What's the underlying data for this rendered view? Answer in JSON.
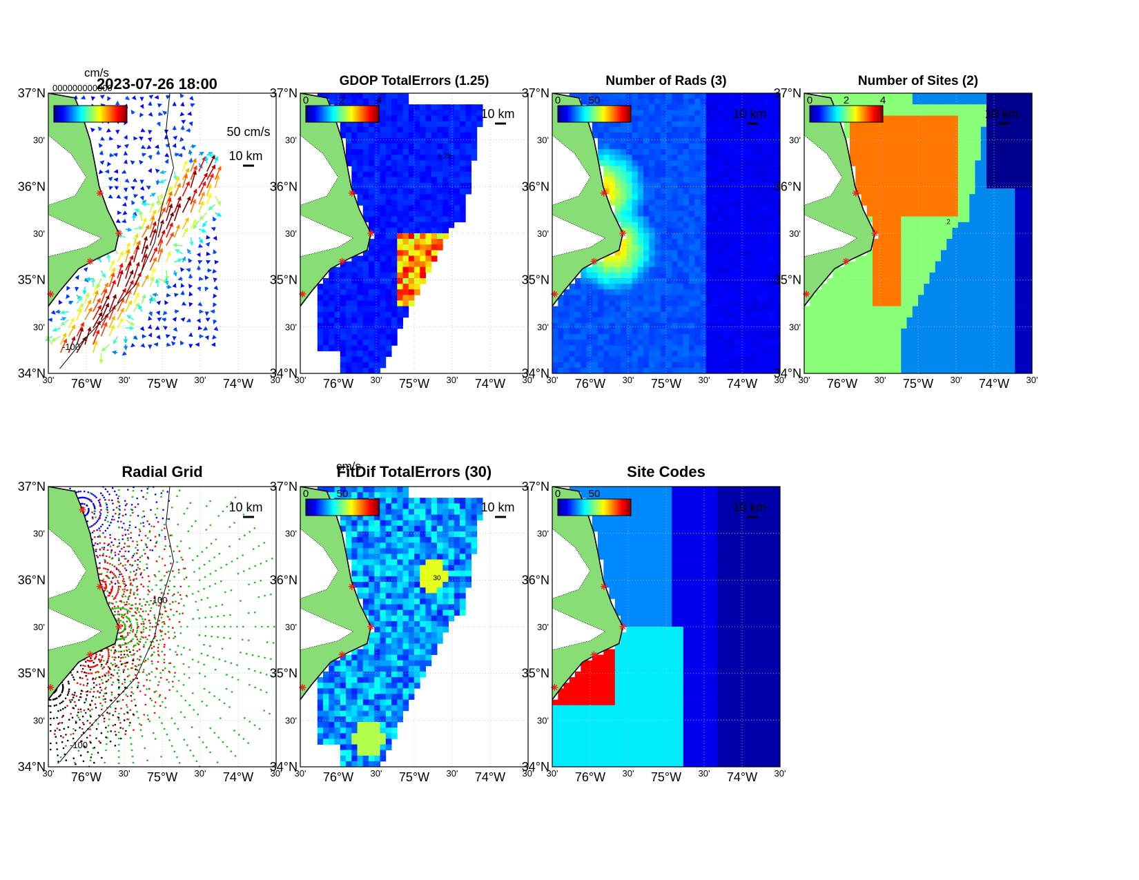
{
  "figure": {
    "timestamp": "2023-07-26 18:00"
  },
  "colors": {
    "land": "#88dd77",
    "coast": "#000000",
    "grid": "#bbbbbb",
    "site_marker": "#ee2222"
  },
  "axes": {
    "lat_major": [
      "37°N",
      "36°N",
      "35°N",
      "34°N"
    ],
    "lat_minor": [
      "30'",
      "30'",
      "30'"
    ],
    "lon_labels": [
      "30'",
      "76°W",
      "30'",
      "75°W",
      "30'",
      "74°W",
      "30'"
    ]
  },
  "panels": [
    {
      "id": "currents",
      "title": "",
      "colorbar_unit": "cm/s",
      "colorbar_ticks": [],
      "overlap_text": "000000000000",
      "vector_scale": "50 cm/s",
      "distance_scale": "10 km",
      "contour_label": "-100"
    },
    {
      "id": "gdop",
      "title": "GDOP TotalErrors (1.25)",
      "colorbar_ticks": [
        "0",
        "2",
        "4"
      ],
      "distance_scale": "10 km",
      "contour_label": "1.25"
    },
    {
      "id": "rads",
      "title": "Number of Rads (3)",
      "colorbar_ticks": [
        "0",
        "50"
      ],
      "distance_scale": "10 km"
    },
    {
      "id": "sites",
      "title": "Number of Sites (2)",
      "colorbar_ticks": [
        "0",
        "2",
        "4"
      ],
      "distance_scale": "10 km",
      "contour_label": "2"
    },
    {
      "id": "radial-grid",
      "title": "Radial Grid",
      "distance_scale": "10 km",
      "contour_label": "-100",
      "contour_label_2": "-100"
    },
    {
      "id": "fitdif",
      "title": "FitDif TotalErrors (30)",
      "colorbar_unit": "cm/s",
      "colorbar_ticks": [
        "0",
        "50"
      ],
      "distance_scale": "10 km",
      "contour_label": "30"
    },
    {
      "id": "sitecodes",
      "title": "Site Codes",
      "colorbar_ticks": [
        "0",
        "50"
      ],
      "distance_scale": "10 km"
    }
  ]
}
